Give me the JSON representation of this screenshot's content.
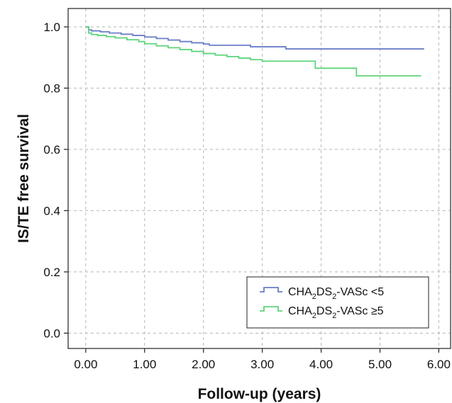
{
  "chart_data": {
    "type": "line",
    "step": true,
    "xlabel": "Follow-up (years)",
    "ylabel": "IS/TE free survival",
    "xlim": [
      -0.3,
      6.2
    ],
    "ylim": [
      -0.05,
      1.06
    ],
    "x_ticks": [
      0,
      1,
      2,
      3,
      4,
      5,
      6
    ],
    "x_tick_labels": [
      "0.00",
      "1.00",
      "2.00",
      "3.00",
      "4.00",
      "5.00",
      "6.00"
    ],
    "y_ticks": [
      0,
      0.2,
      0.4,
      0.6,
      0.8,
      1.0
    ],
    "y_tick_labels": [
      "0.0",
      "0.2",
      "0.4",
      "0.6",
      "0.8",
      "1.0"
    ],
    "grid": true,
    "grid_style": "dashed",
    "legend_position": "bottom-right",
    "series": [
      {
        "legend": {
          "main": "CHA",
          "sub1": "2",
          "mid": "DS",
          "sub2": "2",
          "tail": "-VASc <5"
        },
        "color": "#6a7fc8",
        "x": [
          0,
          0.05,
          0.1,
          0.25,
          0.4,
          0.6,
          0.8,
          1.0,
          1.2,
          1.4,
          1.6,
          1.8,
          2.0,
          2.1,
          2.5,
          2.8,
          3.0,
          3.4,
          5.75
        ],
        "y": [
          1.0,
          0.99,
          0.987,
          0.984,
          0.98,
          0.976,
          0.972,
          0.967,
          0.962,
          0.957,
          0.952,
          0.948,
          0.944,
          0.94,
          0.94,
          0.935,
          0.935,
          0.928,
          0.928
        ]
      },
      {
        "legend": {
          "main": "CHA",
          "sub1": "2",
          "mid": "DS",
          "sub2": "2",
          "tail": "-VASc ≥5"
        },
        "color": "#5ed47a",
        "x": [
          0,
          0.05,
          0.1,
          0.2,
          0.35,
          0.5,
          0.7,
          0.9,
          1.0,
          1.2,
          1.4,
          1.6,
          1.8,
          2.0,
          2.2,
          2.4,
          2.6,
          2.8,
          3.0,
          3.3,
          3.9,
          4.6,
          5.7
        ],
        "y": [
          1.0,
          0.98,
          0.975,
          0.972,
          0.968,
          0.964,
          0.958,
          0.952,
          0.945,
          0.938,
          0.932,
          0.926,
          0.92,
          0.913,
          0.908,
          0.903,
          0.898,
          0.893,
          0.888,
          0.888,
          0.865,
          0.84,
          0.84
        ]
      }
    ]
  }
}
